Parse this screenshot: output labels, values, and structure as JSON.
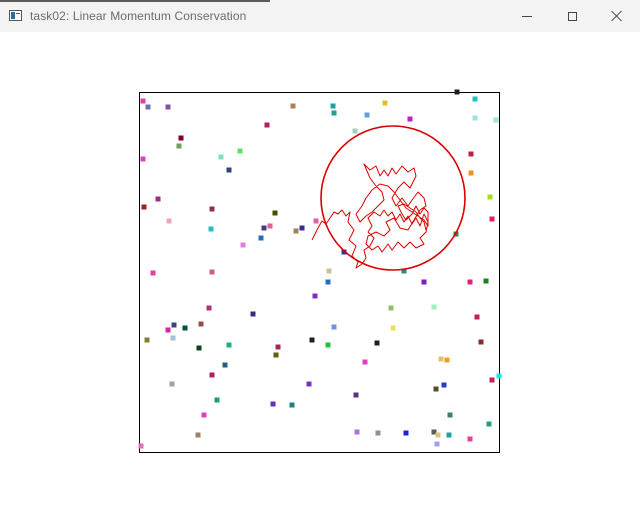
{
  "window": {
    "title": "task02: Linear Momentum Conservation",
    "controls": {
      "minimize_icon": "minimize-icon",
      "maximize_icon": "maximize-icon",
      "close_icon": "close-icon"
    }
  },
  "simulation": {
    "circle_color": "#dd0000",
    "trail_color": "#dd0000",
    "border_color": "#000000",
    "particles": [
      [
        "#e040a0",
        143,
        101
      ],
      [
        "#7070b0",
        148,
        107
      ],
      [
        "#8a50a0",
        168,
        107
      ],
      [
        "#b08050",
        293,
        106
      ],
      [
        "#20a0a0",
        333,
        106
      ],
      [
        "#e0c020",
        385,
        103
      ],
      [
        "#20c0c0",
        475,
        99
      ],
      [
        "#202020",
        457,
        92
      ],
      [
        "#60a0e0",
        367,
        115
      ],
      [
        "#20a090",
        334,
        113
      ],
      [
        "#c020c0",
        410,
        119
      ],
      [
        "#a0e0e0",
        475,
        118
      ],
      [
        "#a0e0e0",
        496,
        120
      ],
      [
        "#b02060",
        267,
        125
      ],
      [
        "#a0d0c0",
        355,
        131
      ],
      [
        "#800020",
        181,
        138
      ],
      [
        "#70a060",
        179,
        146
      ],
      [
        "#60e060",
        240,
        151
      ],
      [
        "#80e0c0",
        221,
        157
      ],
      [
        "#e040c0",
        143,
        159
      ],
      [
        "#c02040",
        471,
        154
      ],
      [
        "#304080",
        229,
        170
      ],
      [
        "#f09020",
        471,
        173
      ],
      [
        "#a0e020",
        490,
        197
      ],
      [
        "#a03080",
        158,
        199
      ],
      [
        "#a02020",
        144,
        207
      ],
      [
        "#903050",
        212,
        209
      ],
      [
        "#405000",
        275,
        213
      ],
      [
        "#e060a0",
        316,
        221
      ],
      [
        "#f0a0c0",
        169,
        221
      ],
      [
        "#e02060",
        492,
        219
      ],
      [
        "#20c0c0",
        211,
        229
      ],
      [
        "#404080",
        264,
        228
      ],
      [
        "#e060a0",
        270,
        226
      ],
      [
        "#303090",
        302,
        228
      ],
      [
        "#a08060",
        296,
        231
      ],
      [
        "#408040",
        456,
        234
      ],
      [
        "#e080e0",
        243,
        245
      ],
      [
        "#2070c0",
        261,
        238
      ],
      [
        "#e040a0",
        153,
        273
      ],
      [
        "#d06080",
        212,
        272
      ],
      [
        "#2070c0",
        328,
        282
      ],
      [
        "#2040a0",
        344,
        252
      ],
      [
        "#209080",
        404,
        271
      ],
      [
        "#8020c0",
        424,
        282
      ],
      [
        "#d0c090",
        329,
        271
      ],
      [
        "#e02080",
        470,
        282
      ],
      [
        "#208020",
        486,
        281
      ],
      [
        "#8030c0",
        315,
        296
      ],
      [
        "#90c060",
        391,
        308
      ],
      [
        "#a0f0c0",
        434,
        307
      ],
      [
        "#b03070",
        209,
        308
      ],
      [
        "#303080",
        253,
        314
      ],
      [
        "#c02050",
        477,
        317
      ],
      [
        "#905050",
        201,
        324
      ],
      [
        "#7090e0",
        334,
        327
      ],
      [
        "#404080",
        174,
        325
      ],
      [
        "#005040",
        185,
        328
      ],
      [
        "#e020a0",
        168,
        330
      ],
      [
        "#a0c0e0",
        173,
        338
      ],
      [
        "#808030",
        147,
        340
      ],
      [
        "#f0e060",
        393,
        328
      ],
      [
        "#20b080",
        229,
        345
      ],
      [
        "#202020",
        312,
        340
      ],
      [
        "#20c040",
        328,
        345
      ],
      [
        "#b02060",
        278,
        347
      ],
      [
        "#202020",
        377,
        343
      ],
      [
        "#104020",
        199,
        348
      ],
      [
        "#803030",
        481,
        342
      ],
      [
        "#606000",
        276,
        355
      ],
      [
        "#e040c0",
        365,
        362
      ],
      [
        "#e0c080",
        441,
        359
      ],
      [
        "#f0a020",
        447,
        360
      ],
      [
        "#206080",
        225,
        365
      ],
      [
        "#b02060",
        212,
        375
      ],
      [
        "#c02050",
        492,
        380
      ],
      [
        "#20e0e0",
        499,
        376
      ],
      [
        "#8030c0",
        309,
        384
      ],
      [
        "#2040c0",
        444,
        385
      ],
      [
        "#a0a0b0",
        172,
        384
      ],
      [
        "#505030",
        436,
        389
      ],
      [
        "#603080",
        356,
        395
      ],
      [
        "#20a060",
        217,
        400
      ],
      [
        "#6030c0",
        273,
        404
      ],
      [
        "#208080",
        292,
        405
      ],
      [
        "#408060",
        450,
        415
      ],
      [
        "#e040c0",
        204,
        415
      ],
      [
        "#20a080",
        489,
        424
      ],
      [
        "#b070e0",
        357,
        432
      ],
      [
        "#909090",
        378,
        433
      ],
      [
        "#2020e0",
        406,
        433
      ],
      [
        "#a08060",
        198,
        435
      ],
      [
        "#506060",
        434,
        432
      ],
      [
        "#e0c080",
        438,
        435
      ],
      [
        "#20a0a0",
        449,
        435
      ],
      [
        "#e040a0",
        470,
        439
      ],
      [
        "#a0a0f0",
        437,
        444
      ],
      [
        "#e070b0",
        141,
        446
      ]
    ]
  }
}
